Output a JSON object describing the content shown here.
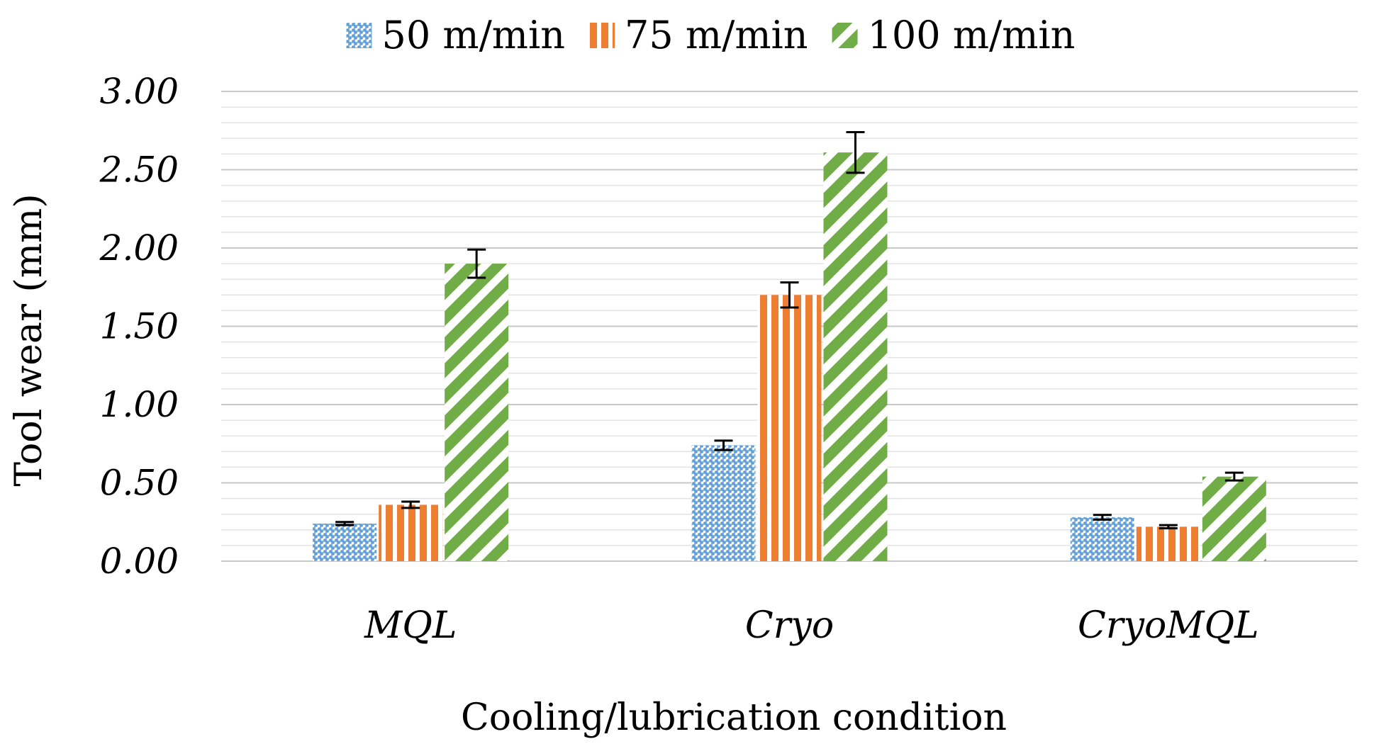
{
  "chart_data": {
    "type": "bar",
    "title": "",
    "xlabel": "Cooling/lubrication condition",
    "ylabel": "Tool wear (mm)",
    "ylim": [
      0,
      3
    ],
    "y_ticks": [
      "0.00",
      "0.50",
      "1.00",
      "1.50",
      "2.00",
      "2.50",
      "3.00"
    ],
    "grid": true,
    "legend_position": "top-center",
    "categories": [
      "MQL",
      "Cryo",
      "CryoMQL"
    ],
    "series": [
      {
        "name": "50 m/min",
        "color": "#5b9bd5",
        "pattern": "dotted-crosshatch",
        "values": [
          0.24,
          0.74,
          0.28
        ],
        "errors": [
          0.01,
          0.03,
          0.015
        ]
      },
      {
        "name": "75 m/min",
        "color": "#ed7d31",
        "pattern": "vertical-stripes",
        "values": [
          0.36,
          1.7,
          0.22
        ],
        "errors": [
          0.02,
          0.08,
          0.01
        ]
      },
      {
        "name": "100 m/min",
        "color": "#70ad47",
        "pattern": "diagonal-stripes",
        "values": [
          1.9,
          2.61,
          0.54
        ],
        "errors": [
          0.09,
          0.13,
          0.025
        ]
      }
    ]
  }
}
